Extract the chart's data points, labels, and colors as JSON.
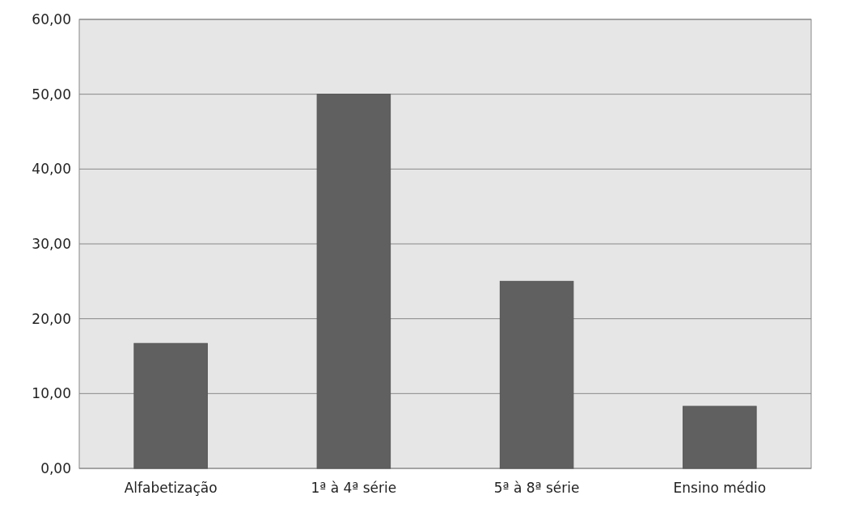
{
  "chart_data": {
    "type": "bar",
    "categories": [
      "Alfabetização",
      "1ª à 4ª série",
      "5ª à 8ª série",
      "Ensino médio"
    ],
    "values": [
      16.7,
      50,
      25,
      8.3
    ],
    "color": "#606060",
    "ylim": [
      0,
      60
    ],
    "yticks": [
      {
        "value": 0,
        "label": "0,00"
      },
      {
        "value": 10,
        "label": "10,00"
      },
      {
        "value": 20,
        "label": "20,00"
      },
      {
        "value": 30,
        "label": "30,00"
      },
      {
        "value": 40,
        "label": "40,00"
      },
      {
        "value": 50,
        "label": "50,00"
      },
      {
        "value": 60,
        "label": "60,00"
      }
    ],
    "grid": "y"
  }
}
